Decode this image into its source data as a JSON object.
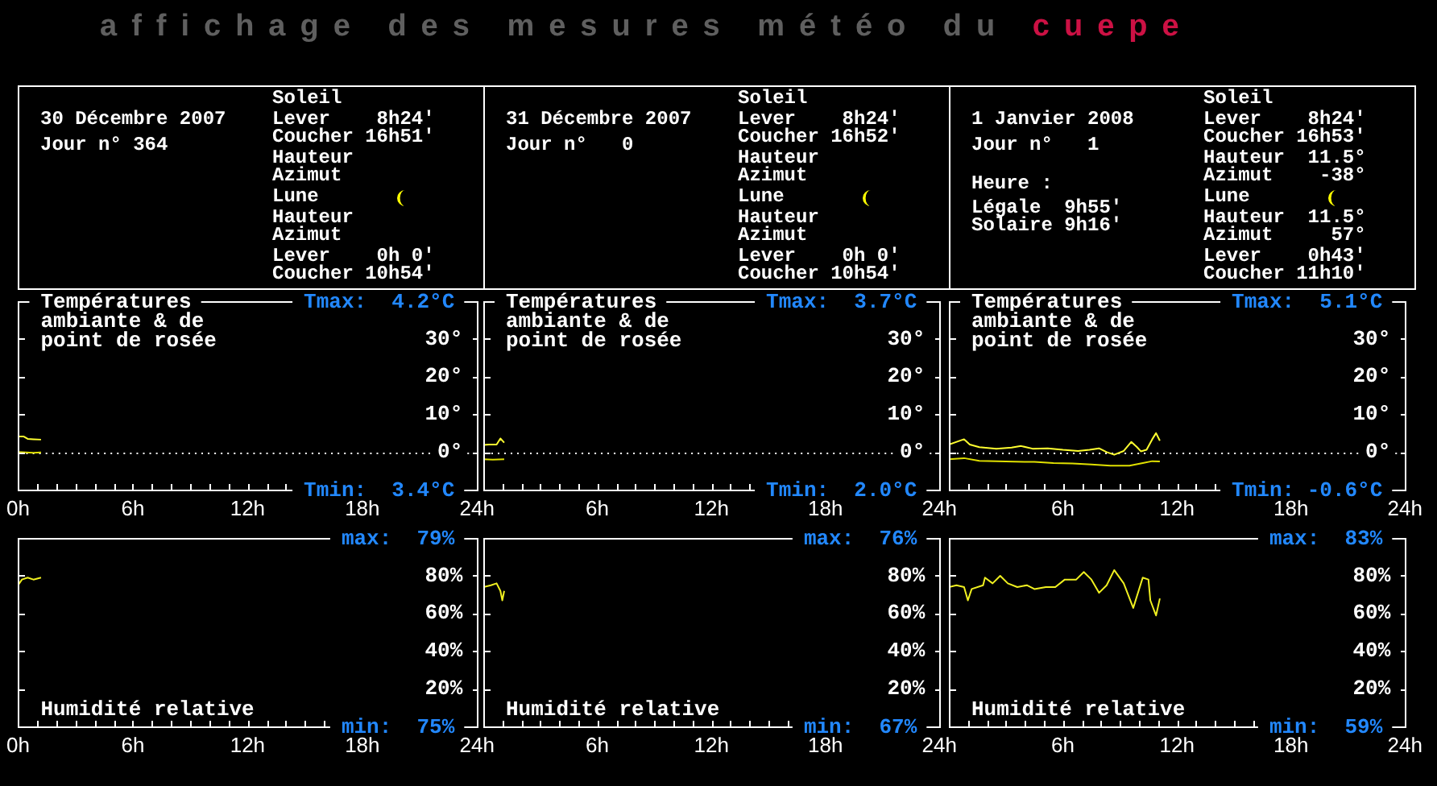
{
  "chart_data": [
    {
      "type": "other",
      "title": "affichage des mesures météo du cuepe"
    },
    {
      "type": "other",
      "title": "30 Décembre 2007",
      "subtitle": "Jour n° 364",
      "annotations": [
        "Soleil",
        "Lever    8h24'",
        "Coucher 16h51'",
        "Hauteur",
        "Azimut",
        "Lune",
        "Hauteur",
        "Azimut",
        "Lever    0h 0'",
        "Coucher 10h54'"
      ]
    },
    {
      "type": "other",
      "title": "31 Décembre 2007",
      "subtitle": "Jour n°   0",
      "annotations": [
        "Soleil",
        "Lever    8h24'",
        "Coucher 16h52'",
        "Hauteur",
        "Azimut",
        "Lune",
        "Hauteur",
        "Azimut",
        "Lever    0h 0'",
        "Coucher 10h54'"
      ]
    },
    {
      "type": "other",
      "title": "1 Janvier 2008",
      "subtitle": "Jour n°   1",
      "annotations": [
        "Soleil",
        "Lever    8h24'",
        "Coucher 16h53'",
        "Hauteur  11.5°",
        "Azimut    -38°",
        "Lune",
        "Hauteur  11.5°",
        "Azimut     57°",
        "Lever    0h43'",
        "Coucher 11h10'",
        "Heure :",
        "Légale  9h55'",
        "Solaire 9h16'"
      ]
    },
    {
      "type": "line",
      "title": "Températures ambiante & de point de rosée",
      "annotations": [
        "Tmax:  4.2°C",
        "Tmin:  3.4°C"
      ],
      "xlim": [
        0,
        24
      ],
      "xticks": [
        {
          "value": 0,
          "label": "0h"
        },
        {
          "value": 1,
          "label": null
        },
        {
          "value": 2,
          "label": null
        },
        {
          "value": 3,
          "label": null
        },
        {
          "value": 4,
          "label": null
        },
        {
          "value": 5,
          "label": null
        },
        {
          "value": 6,
          "label": "6h"
        },
        {
          "value": 7,
          "label": null
        },
        {
          "value": 8,
          "label": null
        },
        {
          "value": 9,
          "label": null
        },
        {
          "value": 10,
          "label": null
        },
        {
          "value": 11,
          "label": null
        },
        {
          "value": 12,
          "label": "12h"
        },
        {
          "value": 13,
          "label": null
        },
        {
          "value": 14,
          "label": null
        },
        {
          "value": 18,
          "label": "18h"
        },
        {
          "value": 24,
          "label": "24h"
        }
      ],
      "ylim": [
        -10,
        40
      ],
      "yticks": [
        {
          "value": 0,
          "label": "0°"
        },
        {
          "value": 10,
          "label": "10°"
        },
        {
          "value": 20,
          "label": "20°"
        },
        {
          "value": 30,
          "label": "30°"
        }
      ],
      "ref_lines": [
        {
          "axis": "y",
          "value": 0,
          "color": "#ffffff",
          "line_style": "dotted"
        }
      ],
      "marker": "none",
      "series": [
        {
          "color": "#ffff30",
          "x": [
            0,
            0.3,
            0.5,
            0.8,
            1.2
          ],
          "values": [
            4.2,
            4.2,
            3.6,
            3.5,
            3.4
          ]
        },
        {
          "color": "#e0e000",
          "x": [
            0,
            0.4,
            0.8,
            1.2
          ],
          "values": [
            0.1,
            0,
            -0.1,
            0
          ]
        }
      ]
    },
    {
      "type": "line",
      "title": "Températures ambiante & de point de rosée",
      "annotations": [
        "Tmax:  3.7°C",
        "Tmin:  2.0°C"
      ],
      "xlim": [
        0,
        24
      ],
      "xticks": [
        {
          "value": 0,
          "label": null
        },
        {
          "value": 1,
          "label": null
        },
        {
          "value": 2,
          "label": null
        },
        {
          "value": 3,
          "label": null
        },
        {
          "value": 4,
          "label": null
        },
        {
          "value": 5,
          "label": null
        },
        {
          "value": 6,
          "label": "6h"
        },
        {
          "value": 7,
          "label": null
        },
        {
          "value": 8,
          "label": null
        },
        {
          "value": 9,
          "label": null
        },
        {
          "value": 10,
          "label": null
        },
        {
          "value": 11,
          "label": null
        },
        {
          "value": 12,
          "label": "12h"
        },
        {
          "value": 13,
          "label": null
        },
        {
          "value": 14,
          "label": null
        },
        {
          "value": 18,
          "label": "18h"
        },
        {
          "value": 24,
          "label": "24h"
        }
      ],
      "ylim": [
        -10,
        40
      ],
      "yticks": [
        {
          "value": 0,
          "label": "0°"
        },
        {
          "value": 10,
          "label": "10°"
        },
        {
          "value": 20,
          "label": "20°"
        },
        {
          "value": 30,
          "label": "30°"
        }
      ],
      "ref_lines": [
        {
          "axis": "y",
          "value": 0,
          "color": "#ffffff",
          "line_style": "dotted"
        }
      ],
      "marker": "none",
      "series": [
        {
          "color": "#ffff30",
          "x": [
            0,
            0.3,
            0.7,
            0.9,
            1.1
          ],
          "values": [
            2.0,
            2.1,
            2.1,
            3.7,
            2.6
          ]
        },
        {
          "color": "#e0e000",
          "x": [
            0,
            0.5,
            1.1
          ],
          "values": [
            -1.8,
            -1.9,
            -1.8
          ]
        }
      ]
    },
    {
      "type": "line",
      "title": "Températures ambiante & de point de rosée",
      "annotations": [
        "Tmax:  5.1°C",
        "Tmin: -0.6°C"
      ],
      "xlim": [
        0,
        24
      ],
      "xticks": [
        {
          "value": 0,
          "label": null
        },
        {
          "value": 1,
          "label": null
        },
        {
          "value": 2,
          "label": null
        },
        {
          "value": 3,
          "label": null
        },
        {
          "value": 4,
          "label": null
        },
        {
          "value": 5,
          "label": null
        },
        {
          "value": 6,
          "label": "6h"
        },
        {
          "value": 7,
          "label": null
        },
        {
          "value": 8,
          "label": null
        },
        {
          "value": 9,
          "label": null
        },
        {
          "value": 10,
          "label": null
        },
        {
          "value": 11,
          "label": null
        },
        {
          "value": 12,
          "label": "12h"
        },
        {
          "value": 13,
          "label": null
        },
        {
          "value": 14,
          "label": null
        },
        {
          "value": 18,
          "label": "18h"
        },
        {
          "value": 24,
          "label": "24h"
        }
      ],
      "ylim": [
        -10,
        40
      ],
      "yticks": [
        {
          "value": 0,
          "label": "0°"
        },
        {
          "value": 10,
          "label": "10°"
        },
        {
          "value": 20,
          "label": "20°"
        },
        {
          "value": 30,
          "label": "30°"
        }
      ],
      "ref_lines": [
        {
          "axis": "y",
          "value": 0,
          "color": "#ffffff",
          "line_style": "dotted"
        }
      ],
      "marker": "none",
      "series": [
        {
          "color": "#ffff30",
          "x": [
            0,
            0.8,
            1.1,
            1.6,
            2.5,
            3.3,
            3.8,
            4.4,
            5.2,
            6.0,
            6.8,
            7.4,
            7.9,
            8.3,
            8.7,
            9.2,
            9.6,
            9.9,
            10.1,
            10.4,
            10.7,
            10.9,
            11.1
          ],
          "values": [
            2.1,
            3.5,
            2.1,
            1.4,
            1.0,
            1.3,
            1.7,
            1.0,
            1.1,
            0.7,
            0.4,
            0.7,
            1.1,
            0.1,
            -0.6,
            0.4,
            2.8,
            1.4,
            0.3,
            0.7,
            3.5,
            5.1,
            3.1
          ]
        },
        {
          "color": "#e0e000",
          "x": [
            0,
            0.8,
            1.6,
            3.0,
            4.5,
            5.5,
            6.5,
            7.5,
            8.5,
            9.5,
            10.2,
            10.7,
            11.1
          ],
          "values": [
            -1.8,
            -1.5,
            -2.2,
            -2.4,
            -2.5,
            -2.8,
            -2.9,
            -3.2,
            -3.5,
            -3.5,
            -2.8,
            -2.3,
            -2.4
          ]
        }
      ]
    },
    {
      "type": "line",
      "title": "Humidité relative",
      "annotations": [
        "max:  79%",
        "min:  75%"
      ],
      "xlim": [
        0,
        24
      ],
      "xticks": [
        {
          "value": 0,
          "label": "0h"
        },
        {
          "value": 1,
          "label": null
        },
        {
          "value": 2,
          "label": null
        },
        {
          "value": 3,
          "label": null
        },
        {
          "value": 4,
          "label": null
        },
        {
          "value": 5,
          "label": null
        },
        {
          "value": 6,
          "label": "6h"
        },
        {
          "value": 7,
          "label": null
        },
        {
          "value": 8,
          "label": null
        },
        {
          "value": 9,
          "label": null
        },
        {
          "value": 10,
          "label": null
        },
        {
          "value": 11,
          "label": null
        },
        {
          "value": 12,
          "label": "12h"
        },
        {
          "value": 13,
          "label": null
        },
        {
          "value": 14,
          "label": null
        },
        {
          "value": 15,
          "label": null
        },
        {
          "value": 16,
          "label": null
        },
        {
          "value": 18,
          "label": "18h"
        },
        {
          "value": 24,
          "label": "24h"
        }
      ],
      "ylim": [
        0,
        100
      ],
      "yticks": [
        {
          "value": 20,
          "label": "20%"
        },
        {
          "value": 40,
          "label": "40%"
        },
        {
          "value": 60,
          "label": "60%"
        },
        {
          "value": 80,
          "label": "80%"
        }
      ],
      "marker": "none",
      "series": [
        {
          "color": "#f0f020",
          "x": [
            0,
            0.2,
            0.5,
            0.8,
            1.2
          ],
          "values": [
            75,
            78,
            79,
            78,
            79
          ]
        }
      ]
    },
    {
      "type": "line",
      "title": "Humidité relative",
      "annotations": [
        "max:  76%",
        "min:  67%"
      ],
      "xlim": [
        0,
        24
      ],
      "xticks": [
        {
          "value": 0,
          "label": null
        },
        {
          "value": 1,
          "label": null
        },
        {
          "value": 2,
          "label": null
        },
        {
          "value": 3,
          "label": null
        },
        {
          "value": 4,
          "label": null
        },
        {
          "value": 5,
          "label": null
        },
        {
          "value": 6,
          "label": "6h"
        },
        {
          "value": 7,
          "label": null
        },
        {
          "value": 8,
          "label": null
        },
        {
          "value": 9,
          "label": null
        },
        {
          "value": 10,
          "label": null
        },
        {
          "value": 11,
          "label": null
        },
        {
          "value": 12,
          "label": "12h"
        },
        {
          "value": 13,
          "label": null
        },
        {
          "value": 14,
          "label": null
        },
        {
          "value": 15,
          "label": null
        },
        {
          "value": 16,
          "label": null
        },
        {
          "value": 18,
          "label": "18h"
        },
        {
          "value": 24,
          "label": "24h"
        }
      ],
      "ylim": [
        0,
        100
      ],
      "yticks": [
        {
          "value": 20,
          "label": "20%"
        },
        {
          "value": 40,
          "label": "40%"
        },
        {
          "value": 60,
          "label": "60%"
        },
        {
          "value": 80,
          "label": "80%"
        }
      ],
      "marker": "none",
      "series": [
        {
          "color": "#f0f020",
          "x": [
            0,
            0.4,
            0.7,
            0.9,
            1.0,
            1.1
          ],
          "values": [
            74,
            75,
            76,
            72,
            67,
            72
          ]
        }
      ]
    },
    {
      "type": "line",
      "title": "Humidité relative",
      "annotations": [
        "max:  83%",
        "min:  59%"
      ],
      "xlim": [
        0,
        24
      ],
      "xticks": [
        {
          "value": 0,
          "label": null
        },
        {
          "value": 1,
          "label": null
        },
        {
          "value": 2,
          "label": null
        },
        {
          "value": 3,
          "label": null
        },
        {
          "value": 4,
          "label": null
        },
        {
          "value": 5,
          "label": null
        },
        {
          "value": 6,
          "label": "6h"
        },
        {
          "value": 7,
          "label": null
        },
        {
          "value": 8,
          "label": null
        },
        {
          "value": 9,
          "label": null
        },
        {
          "value": 10,
          "label": null
        },
        {
          "value": 11,
          "label": null
        },
        {
          "value": 12,
          "label": "12h"
        },
        {
          "value": 13,
          "label": null
        },
        {
          "value": 14,
          "label": null
        },
        {
          "value": 15,
          "label": null
        },
        {
          "value": 16,
          "label": null
        },
        {
          "value": 18,
          "label": "18h"
        },
        {
          "value": 24,
          "label": "24h"
        }
      ],
      "ylim": [
        0,
        100
      ],
      "yticks": [
        {
          "value": 20,
          "label": "20%"
        },
        {
          "value": 40,
          "label": "40%"
        },
        {
          "value": 60,
          "label": "60%"
        },
        {
          "value": 80,
          "label": "80%"
        }
      ],
      "marker": "none",
      "series": [
        {
          "color": "#f0f020",
          "x": [
            0,
            0.4,
            0.8,
            1.0,
            1.2,
            1.8,
            1.9,
            2.3,
            2.7,
            3.1,
            3.6,
            4.1,
            4.5,
            5.1,
            5.6,
            6.1,
            6.7,
            7.1,
            7.5,
            7.9,
            8.3,
            8.7,
            9.2,
            9.7,
            10.2,
            10.5,
            10.6,
            10.9,
            11.1
          ],
          "values": [
            74,
            75,
            74,
            67,
            73,
            75,
            79,
            76,
            80,
            76,
            74,
            75,
            73,
            74,
            74,
            78,
            78,
            82,
            78,
            71,
            75,
            83,
            76,
            63,
            79,
            78,
            67,
            59,
            68
          ]
        }
      ]
    }
  ]
}
